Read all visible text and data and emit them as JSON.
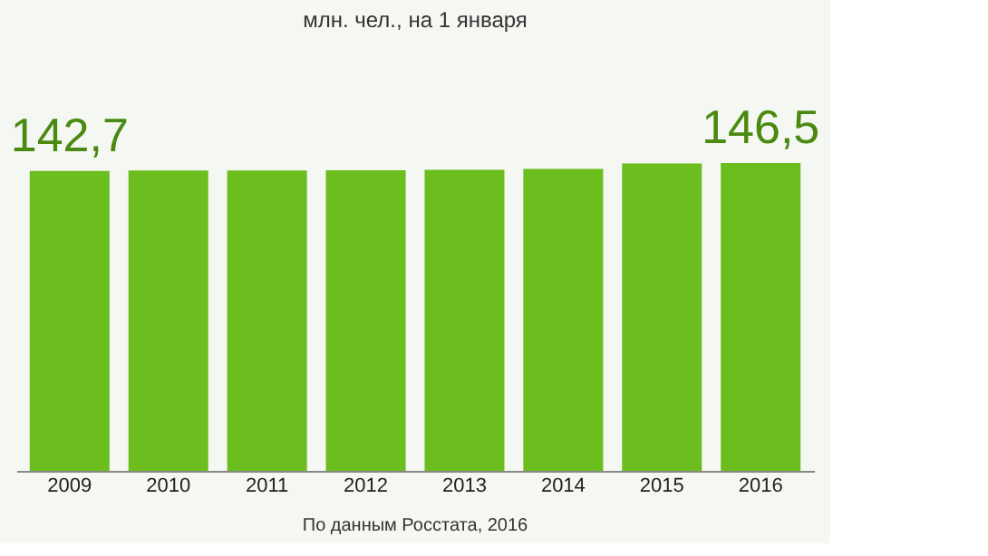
{
  "chart_data": {
    "type": "bar",
    "subtitle": "млн. чел., на 1 января",
    "categories": [
      "2009",
      "2010",
      "2011",
      "2012",
      "2013",
      "2014",
      "2015",
      "2016"
    ],
    "values": [
      142.7,
      142.9,
      142.9,
      143.0,
      143.3,
      143.7,
      146.3,
      146.5
    ],
    "value_labels": [
      "142,7",
      null,
      null,
      null,
      null,
      null,
      null,
      "146,5"
    ],
    "color": "#6cbd1e",
    "annotations": [
      "По данным Росстата, 2016"
    ]
  }
}
